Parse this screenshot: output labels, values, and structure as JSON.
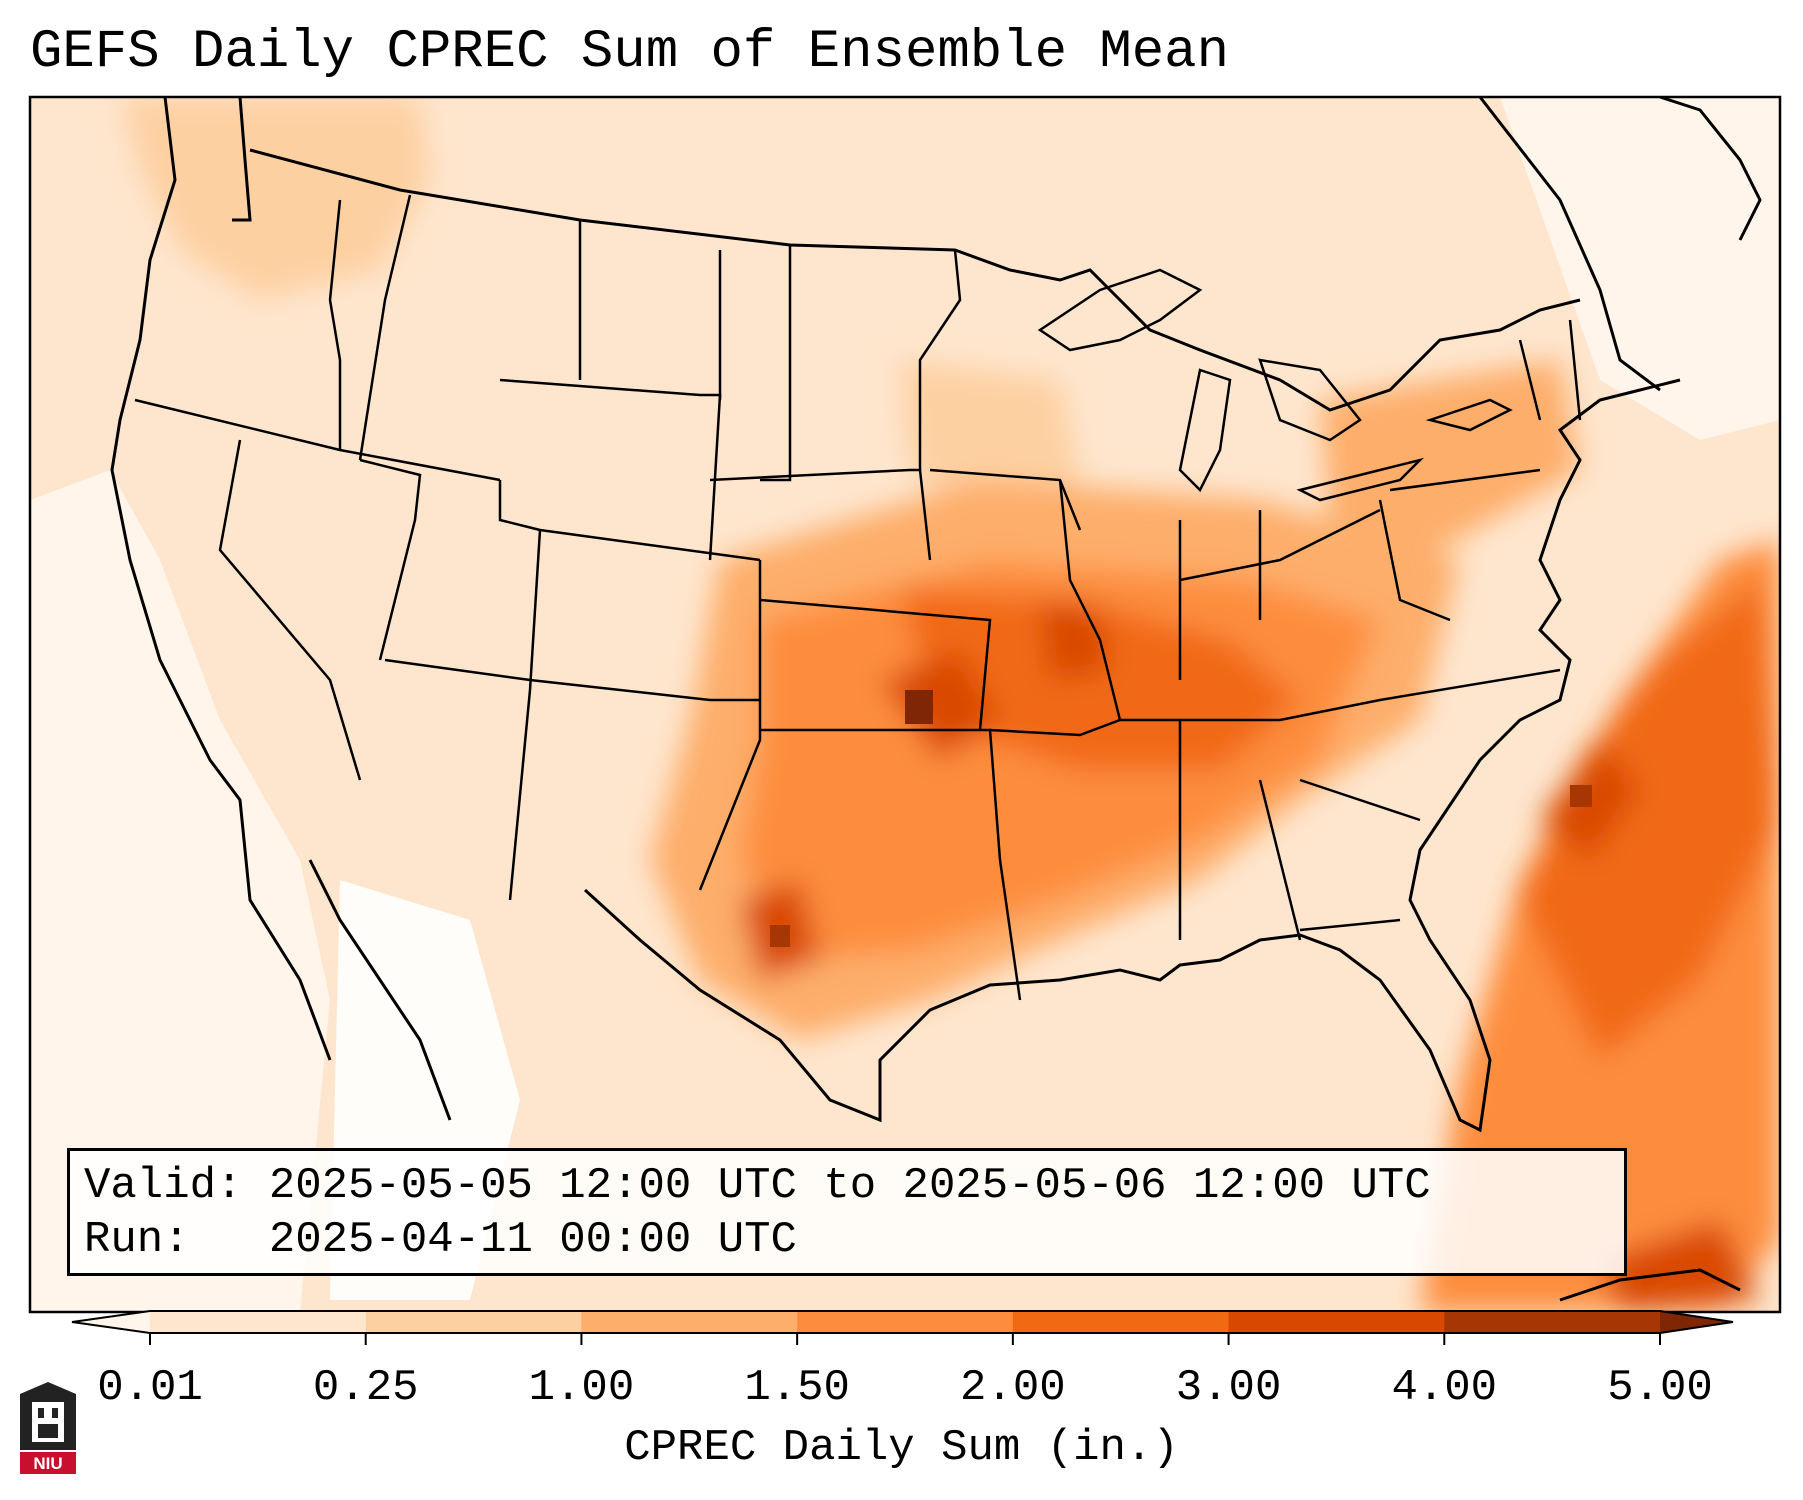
{
  "map": {
    "title": "GEFS Daily CPREC Sum of Ensemble Mean",
    "valid_line": "Valid: 2025-05-05 12:00 UTC to 2025-05-06 12:00 UTC",
    "run_line": "Run:   2025-04-11 00:00 UTC",
    "colorbar": {
      "label": "CPREC Daily Sum (in.)",
      "ticks": [
        "0.01",
        "0.25",
        "1.00",
        "1.50",
        "2.00",
        "3.00",
        "4.00",
        "5.00"
      ],
      "colors": [
        "#fee6ce",
        "#fdd0a2",
        "#fdae6b",
        "#fd8d3c",
        "#f16913",
        "#d94801",
        "#a63603"
      ],
      "under_color": "#fff5eb",
      "over_color": "#7f2704"
    },
    "logo": {
      "icon": "niu-logo-icon",
      "text": "NIU"
    },
    "precip_areas": [
      {
        "region": "Background (CONUS)",
        "bin": 0
      },
      {
        "region": "Pacific Northwest",
        "bin": 1
      },
      {
        "region": "Upper Midwest",
        "bin": 1
      },
      {
        "region": "Southern Plains / Mid-Mississippi Valley",
        "bin": 3
      },
      {
        "region": "Missouri / Ohio Valley",
        "bin": 4
      },
      {
        "region": "Tennessee / Kentucky",
        "bin": 4
      },
      {
        "region": "Southeast / Atlantic",
        "bin": 3
      },
      {
        "region": "Offshore Atlantic max",
        "bin": 5
      },
      {
        "region": "Northeast Oklahoma max",
        "bin": 6
      }
    ]
  }
}
